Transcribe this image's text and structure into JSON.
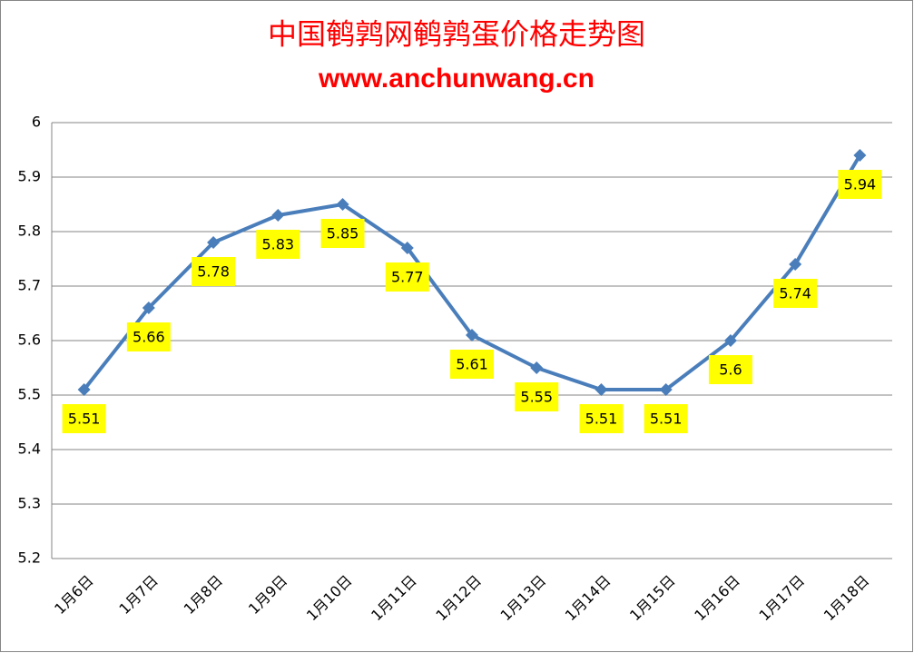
{
  "chart_data": {
    "type": "line",
    "title": "中国鹌鹑网鹌鹑蛋价格走势图",
    "subtitle": "www.anchunwang.cn",
    "categories": [
      "1月6日",
      "1月7日",
      "1月8日",
      "1月9日",
      "1月10日",
      "1月11日",
      "1月12日",
      "1月13日",
      "1月14日",
      "1月15日",
      "1月16日",
      "1月17日",
      "1月18日"
    ],
    "values": [
      5.51,
      5.66,
      5.78,
      5.83,
      5.85,
      5.77,
      5.61,
      5.55,
      5.51,
      5.51,
      5.6,
      5.74,
      5.94
    ],
    "color": "#4a7ebb",
    "ylim": [
      5.2,
      6
    ],
    "yticks": [
      5.2,
      5.3,
      5.4,
      5.5,
      5.6,
      5.7,
      5.8,
      5.9,
      6
    ],
    "grid": true
  }
}
